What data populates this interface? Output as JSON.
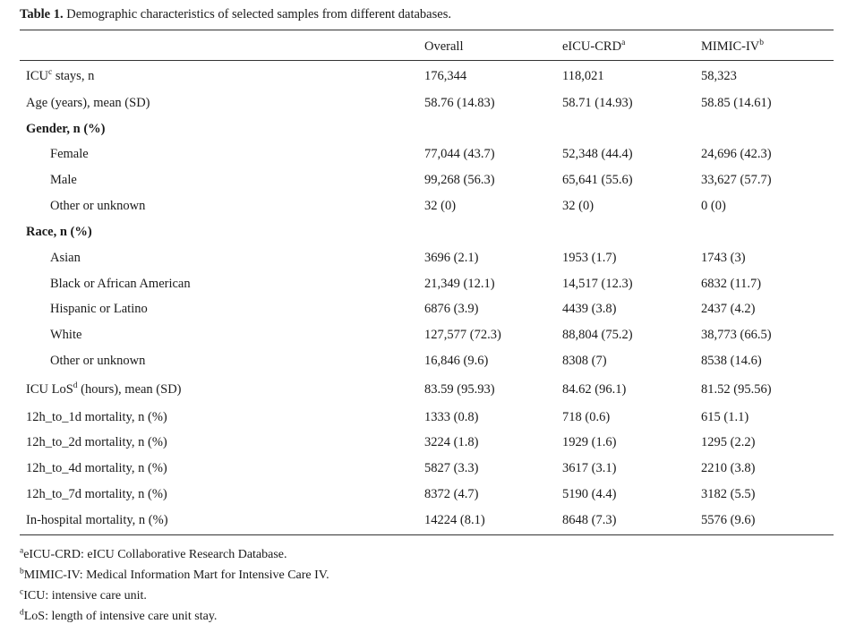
{
  "caption": {
    "label": "Table 1.",
    "text": "Demographic characteristics of selected samples from different databases."
  },
  "columns": [
    {
      "text": "Overall",
      "sup": ""
    },
    {
      "text": "eICU-CRD",
      "sup": "a"
    },
    {
      "text": "MIMIC-IV",
      "sup": "b"
    }
  ],
  "rows": [
    {
      "pre": "ICU",
      "sup": "c",
      "post": " stays, n",
      "values": [
        "176,344",
        "118,021",
        "58,323"
      ]
    },
    {
      "pre": "Age (years), mean (SD)",
      "sup": "",
      "post": "",
      "values": [
        "58.76 (14.83)",
        "58.71 (14.93)",
        "58.85 (14.61)"
      ]
    },
    {
      "pre": "Gender, n (%)",
      "sup": "",
      "post": "",
      "values": [
        "",
        "",
        ""
      ]
    },
    {
      "pre": "Female",
      "sup": "",
      "post": "",
      "values": [
        "77,044 (43.7)",
        "52,348 (44.4)",
        "24,696 (42.3)"
      ]
    },
    {
      "pre": "Male",
      "sup": "",
      "post": "",
      "values": [
        "99,268 (56.3)",
        "65,641 (55.6)",
        "33,627 (57.7)"
      ]
    },
    {
      "pre": "Other or unknown",
      "sup": "",
      "post": "",
      "values": [
        "32 (0)",
        "32 (0)",
        "0 (0)"
      ]
    },
    {
      "pre": "Race, n (%)",
      "sup": "",
      "post": "",
      "values": [
        "",
        "",
        ""
      ]
    },
    {
      "pre": "Asian",
      "sup": "",
      "post": "",
      "values": [
        "3696 (2.1)",
        "1953 (1.7)",
        "1743 (3)"
      ]
    },
    {
      "pre": "Black or African American",
      "sup": "",
      "post": "",
      "values": [
        "21,349 (12.1)",
        "14,517 (12.3)",
        "6832 (11.7)"
      ]
    },
    {
      "pre": "Hispanic or Latino",
      "sup": "",
      "post": "",
      "values": [
        "6876 (3.9)",
        "4439 (3.8)",
        "2437 (4.2)"
      ]
    },
    {
      "pre": "White",
      "sup": "",
      "post": "",
      "values": [
        "127,577 (72.3)",
        "88,804 (75.2)",
        "38,773 (66.5)"
      ]
    },
    {
      "pre": "Other or unknown",
      "sup": "",
      "post": "",
      "values": [
        "16,846 (9.6)",
        "8308 (7)",
        "8538 (14.6)"
      ]
    },
    {
      "pre": "ICU LoS",
      "sup": "d",
      "post": " (hours), mean (SD)",
      "values": [
        "83.59 (95.93)",
        "84.62 (96.1)",
        "81.52 (95.56)"
      ]
    },
    {
      "pre": "12h_to_1d mortality, n (%)",
      "sup": "",
      "post": "",
      "values": [
        "1333 (0.8)",
        "718 (0.6)",
        "615 (1.1)"
      ]
    },
    {
      "pre": "12h_to_2d mortality, n (%)",
      "sup": "",
      "post": "",
      "values": [
        "3224 (1.8)",
        "1929 (1.6)",
        "1295 (2.2)"
      ]
    },
    {
      "pre": "12h_to_4d mortality, n (%)",
      "sup": "",
      "post": "",
      "values": [
        "5827 (3.3)",
        "3617 (3.1)",
        "2210 (3.8)"
      ]
    },
    {
      "pre": "12h_to_7d mortality, n (%)",
      "sup": "",
      "post": "",
      "values": [
        "8372 (4.7)",
        "5190 (4.4)",
        "3182 (5.5)"
      ]
    },
    {
      "pre": "In-hospital mortality, n (%)",
      "sup": "",
      "post": "",
      "values": [
        "14224 (8.1)",
        "8648 (7.3)",
        "5576 (9.6)"
      ]
    }
  ],
  "footnotes": [
    {
      "sup": "a",
      "text": "eICU-CRD: eICU Collaborative Research Database."
    },
    {
      "sup": "b",
      "text": "MIMIC-IV: Medical Information Mart for Intensive Care IV."
    },
    {
      "sup": "c",
      "text": "ICU: intensive care unit."
    },
    {
      "sup": "d",
      "text": "LoS: length of intensive care unit stay."
    }
  ]
}
